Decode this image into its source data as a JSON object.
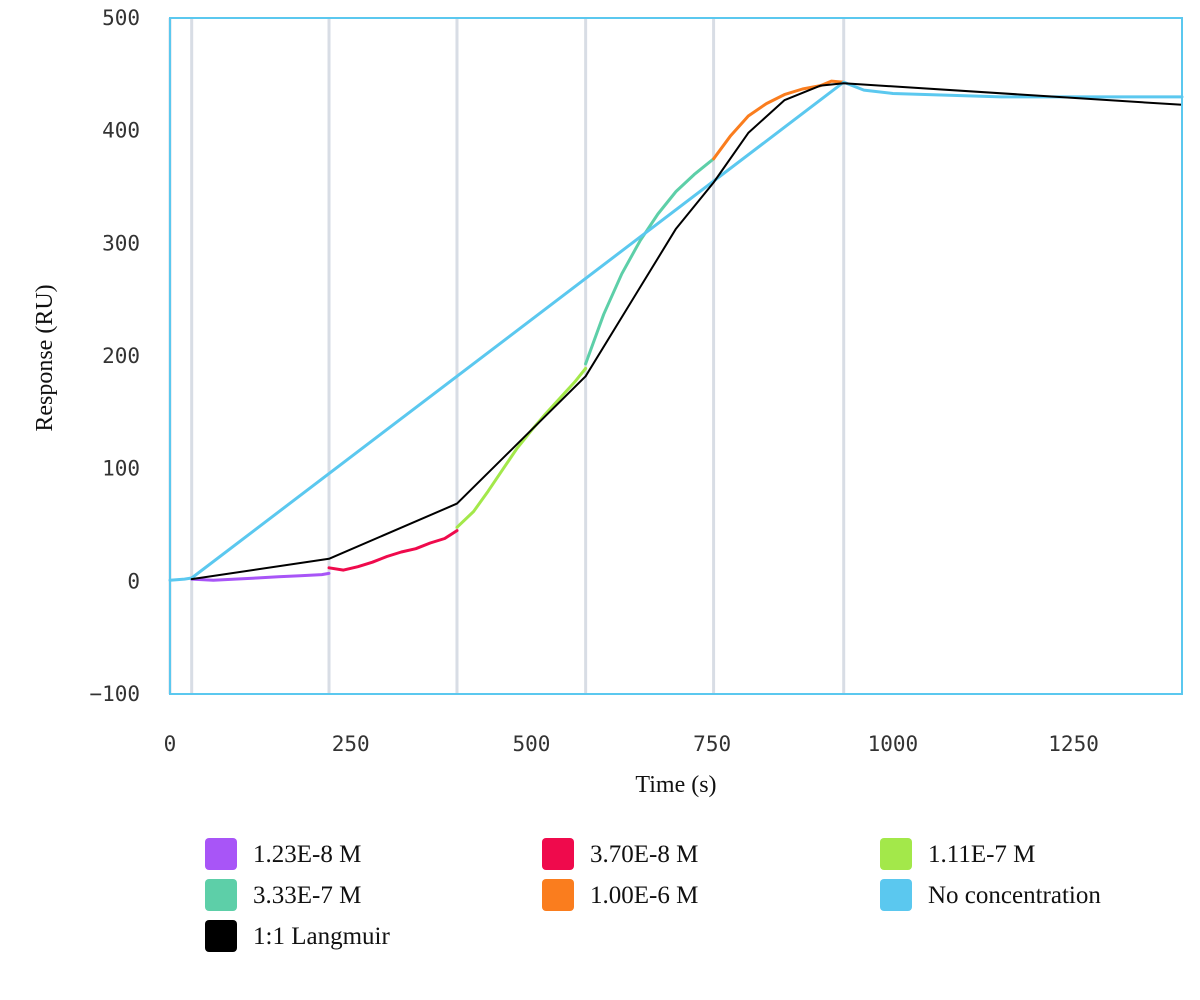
{
  "chart_data": {
    "type": "line",
    "title": "",
    "xlabel": "Time (s)",
    "ylabel": "Response (RU)",
    "xlim": [
      0,
      1400
    ],
    "ylim": [
      -100,
      500
    ],
    "x_ticks": [
      "0",
      "250",
      "500",
      "750",
      "1000",
      "1250"
    ],
    "x_tick_values": [
      0,
      250,
      500,
      750,
      1000,
      1250
    ],
    "y_ticks": [
      "500",
      "400",
      "300",
      "200",
      "100",
      "0",
      "−100"
    ],
    "y_tick_values": [
      500,
      400,
      300,
      200,
      100,
      0,
      -100
    ],
    "grid": false,
    "injection_boundaries_s": [
      0,
      30,
      220,
      397,
      575,
      752,
      932
    ],
    "legend_position": "bottom",
    "series": [
      {
        "name": "1.23E-8 M",
        "color": "#a855f7",
        "x": [
          30,
          60,
          90,
          120,
          150,
          180,
          210,
          220
        ],
        "y": [
          2,
          1,
          2,
          3,
          4,
          5,
          6,
          7
        ]
      },
      {
        "name": "3.70E-8 M",
        "color": "#ef0a4c",
        "x": [
          220,
          240,
          260,
          280,
          300,
          320,
          340,
          360,
          380,
          397
        ],
        "y": [
          12,
          10,
          13,
          17,
          22,
          26,
          29,
          34,
          38,
          45
        ]
      },
      {
        "name": "1.11E-7 M",
        "color": "#a3e84a",
        "x": [
          397,
          420,
          440,
          460,
          480,
          500,
          520,
          540,
          560,
          575
        ],
        "y": [
          48,
          62,
          80,
          99,
          118,
          134,
          149,
          163,
          177,
          189
        ]
      },
      {
        "name": "3.33E-7 M",
        "color": "#5dcfa8",
        "x": [
          575,
          600,
          625,
          650,
          675,
          700,
          725,
          752
        ],
        "y": [
          193,
          237,
          273,
          302,
          326,
          346,
          361,
          375
        ]
      },
      {
        "name": "1.00E-6 M",
        "color": "#fa7d1e",
        "x": [
          752,
          775,
          800,
          825,
          850,
          875,
          900,
          915,
          932
        ],
        "y": [
          375,
          395,
          413,
          424,
          432,
          437,
          440,
          444,
          443
        ]
      },
      {
        "name": "No concentration",
        "color": "#5bc8ef",
        "x": [
          0,
          20,
          30,
          932,
          960,
          1000,
          1050,
          1100,
          1150,
          1200,
          1250,
          1300,
          1350,
          1400
        ],
        "y": [
          1,
          2,
          3,
          443,
          436,
          433,
          432,
          431,
          430,
          430,
          430,
          430,
          430,
          430
        ]
      },
      {
        "name": "1:1 Langmuir",
        "color": "#000000",
        "x": [
          30,
          220,
          397,
          575,
          700,
          752,
          800,
          850,
          900,
          932,
          1400
        ],
        "y": [
          2,
          20,
          69,
          182,
          313,
          354,
          398,
          427,
          440,
          442,
          423
        ]
      }
    ]
  }
}
